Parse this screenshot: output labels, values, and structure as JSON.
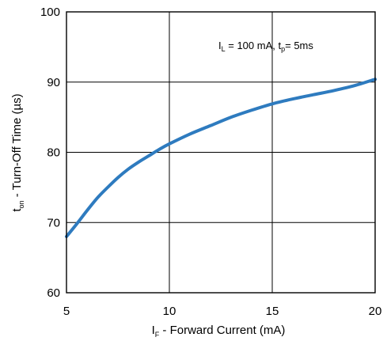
{
  "chart_data": {
    "type": "line",
    "title": "",
    "xlabel": {
      "main": "I",
      "sub": "F",
      "rest": " - Forward Current (mA)"
    },
    "ylabel": {
      "main": "t",
      "sub": "on",
      "rest": " - Turn-Off Time (µs)"
    },
    "xlim": [
      5,
      20
    ],
    "ylim": [
      60,
      100
    ],
    "xticks": [
      5,
      10,
      15,
      20
    ],
    "yticks": [
      60,
      70,
      80,
      90,
      100
    ],
    "grid": true,
    "line_color": "#2e7bbf",
    "annotation": {
      "p1": "I",
      "s1": "L",
      "p2": " =  100 mA, t",
      "s2": "p",
      "p3": "= 5ms"
    },
    "series": [
      {
        "x": [
          5.0,
          5.5,
          6.0,
          6.5,
          7.0,
          7.5,
          8.0,
          8.5,
          9.0,
          9.5,
          10.0,
          11.0,
          12.0,
          13.0,
          14.0,
          15.0,
          16.0,
          17.0,
          18.0,
          19.0,
          20.0
        ],
        "y": [
          68.0,
          69.8,
          71.7,
          73.5,
          75.0,
          76.4,
          77.6,
          78.6,
          79.5,
          80.4,
          81.2,
          82.6,
          83.8,
          85.0,
          86.0,
          86.9,
          87.6,
          88.2,
          88.8,
          89.5,
          90.4
        ]
      }
    ]
  }
}
